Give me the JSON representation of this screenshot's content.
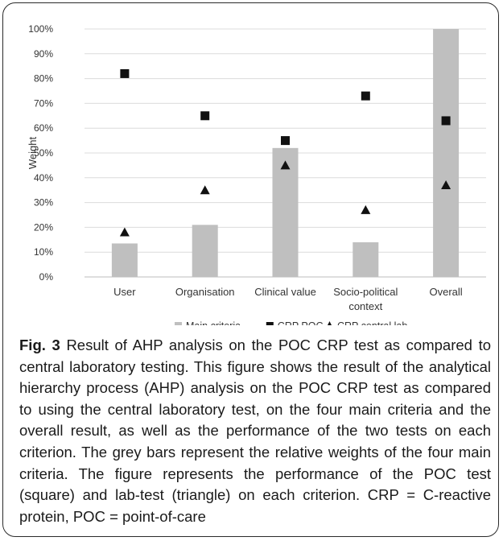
{
  "caption": {
    "label": "Fig. 3",
    "text": " Result of AHP analysis on the POC CRP test as compared to central laboratory testing. This figure shows the result of the analytical hierarchy process (AHP) analysis on the POC CRP test as compared to using the central laboratory test, on the four main criteria and the overall result, as well as the performance of the two tests on each criterion. The grey bars represent the relative weights of the four main criteria. The figure represents the performance of the POC test (square) and lab-test (triangle) on each criterion. CRP = C-reactive protein, POC = point-of-care"
  },
  "chart_data": {
    "type": "bar",
    "categories": [
      [
        "User"
      ],
      [
        "Organisation"
      ],
      [
        "Clinical value"
      ],
      [
        "Socio-political",
        "context"
      ],
      [
        "Overall"
      ]
    ],
    "ylabel": "Weight",
    "ylim": [
      0,
      100
    ],
    "yticks": [
      "0%",
      "10%",
      "20%",
      "30%",
      "40%",
      "50%",
      "60%",
      "70%",
      "80%",
      "90%",
      "100%"
    ],
    "grid": true,
    "legend": "bottom",
    "series": [
      {
        "name": "Main criteria",
        "kind": "bar",
        "marker": "bar",
        "color": "#bfbfbf",
        "values": [
          13.5,
          21,
          52,
          14,
          100
        ]
      },
      {
        "name": "CRP POC",
        "kind": "point",
        "marker": "square",
        "color": "#111111",
        "values": [
          82,
          65,
          55,
          73,
          63
        ]
      },
      {
        "name": "CRP central lab",
        "kind": "point",
        "marker": "triangle",
        "color": "#111111",
        "values": [
          18,
          35,
          45,
          27,
          37
        ]
      }
    ]
  }
}
